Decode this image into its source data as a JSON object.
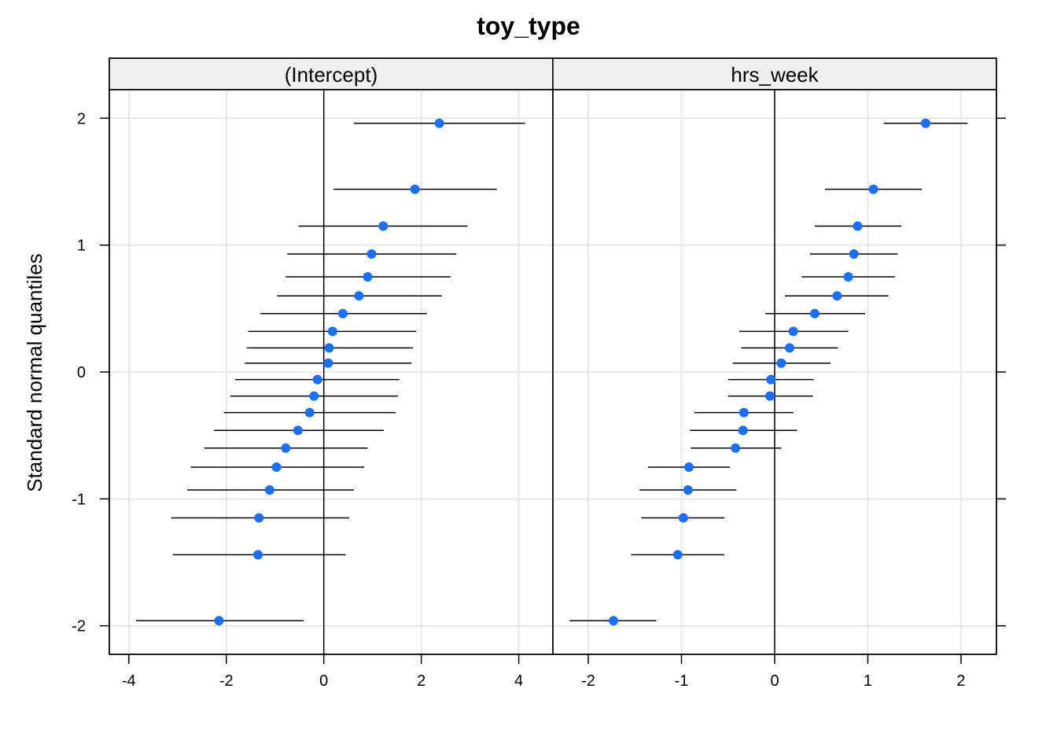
{
  "chart_data": {
    "type": "scatter",
    "title": "toy_type",
    "ylabel": "Standard normal quantiles",
    "xlabel": "",
    "point_color": "#1a6fff",
    "grid": true,
    "y_ticks": [
      "2",
      "1",
      "0",
      "-1",
      "-2"
    ],
    "y_tick_values": [
      2,
      1,
      0,
      -1,
      -2
    ],
    "panels": [
      {
        "name": "(Intercept)",
        "xlim": [
          -4.4,
          4.7
        ],
        "x_ticks": [
          "-4",
          "-2",
          "0",
          "2",
          "4"
        ],
        "x_tick_values": [
          -4,
          -2,
          0,
          2,
          4
        ],
        "points": [
          {
            "x": 2.37,
            "y": 1.96,
            "lo": 0.62,
            "hi": 4.13
          },
          {
            "x": 1.87,
            "y": 1.44,
            "lo": 0.2,
            "hi": 3.55
          },
          {
            "x": 1.22,
            "y": 1.15,
            "lo": -0.52,
            "hi": 2.95
          },
          {
            "x": 0.98,
            "y": 0.93,
            "lo": -0.75,
            "hi": 2.72
          },
          {
            "x": 0.9,
            "y": 0.75,
            "lo": -0.78,
            "hi": 2.6
          },
          {
            "x": 0.72,
            "y": 0.6,
            "lo": -0.96,
            "hi": 2.42
          },
          {
            "x": 0.39,
            "y": 0.46,
            "lo": -1.3,
            "hi": 2.12
          },
          {
            "x": 0.18,
            "y": 0.32,
            "lo": -1.55,
            "hi": 1.9
          },
          {
            "x": 0.11,
            "y": 0.19,
            "lo": -1.58,
            "hi": 1.83
          },
          {
            "x": 0.09,
            "y": 0.07,
            "lo": -1.62,
            "hi": 1.8
          },
          {
            "x": -0.13,
            "y": -0.06,
            "lo": -1.82,
            "hi": 1.55
          },
          {
            "x": -0.2,
            "y": -0.19,
            "lo": -1.92,
            "hi": 1.52
          },
          {
            "x": -0.29,
            "y": -0.32,
            "lo": -2.05,
            "hi": 1.48
          },
          {
            "x": -0.53,
            "y": -0.46,
            "lo": -2.25,
            "hi": 1.23
          },
          {
            "x": -0.78,
            "y": -0.6,
            "lo": -2.45,
            "hi": 0.9
          },
          {
            "x": -0.97,
            "y": -0.75,
            "lo": -2.73,
            "hi": 0.83
          },
          {
            "x": -1.11,
            "y": -0.93,
            "lo": -2.8,
            "hi": 0.62
          },
          {
            "x": -1.33,
            "y": -1.15,
            "lo": -3.13,
            "hi": 0.52
          },
          {
            "x": -1.35,
            "y": -1.44,
            "lo": -3.1,
            "hi": 0.45
          },
          {
            "x": -2.15,
            "y": -1.96,
            "lo": -3.85,
            "hi": -0.41
          }
        ]
      },
      {
        "name": "hrs_week",
        "xlim": [
          -2.38,
          2.38
        ],
        "x_ticks": [
          "-2",
          "-1",
          "0",
          "1",
          "2"
        ],
        "x_tick_values": [
          -2,
          -1,
          0,
          1,
          2
        ],
        "points": [
          {
            "x": 1.62,
            "y": 1.96,
            "lo": 1.17,
            "hi": 2.07
          },
          {
            "x": 1.06,
            "y": 1.44,
            "lo": 0.54,
            "hi": 1.58
          },
          {
            "x": 0.89,
            "y": 1.15,
            "lo": 0.43,
            "hi": 1.36
          },
          {
            "x": 0.85,
            "y": 0.93,
            "lo": 0.38,
            "hi": 1.32
          },
          {
            "x": 0.79,
            "y": 0.75,
            "lo": 0.29,
            "hi": 1.29
          },
          {
            "x": 0.67,
            "y": 0.6,
            "lo": 0.11,
            "hi": 1.22
          },
          {
            "x": 0.43,
            "y": 0.46,
            "lo": -0.1,
            "hi": 0.97
          },
          {
            "x": 0.2,
            "y": 0.32,
            "lo": -0.38,
            "hi": 0.79
          },
          {
            "x": 0.16,
            "y": 0.19,
            "lo": -0.36,
            "hi": 0.68
          },
          {
            "x": 0.07,
            "y": 0.07,
            "lo": -0.45,
            "hi": 0.6
          },
          {
            "x": -0.04,
            "y": -0.06,
            "lo": -0.5,
            "hi": 0.42
          },
          {
            "x": -0.05,
            "y": -0.19,
            "lo": -0.5,
            "hi": 0.41
          },
          {
            "x": -0.33,
            "y": -0.32,
            "lo": -0.86,
            "hi": 0.2
          },
          {
            "x": -0.34,
            "y": -0.46,
            "lo": -0.91,
            "hi": 0.24
          },
          {
            "x": -0.42,
            "y": -0.6,
            "lo": -0.9,
            "hi": 0.07
          },
          {
            "x": -0.92,
            "y": -0.75,
            "lo": -1.36,
            "hi": -0.48
          },
          {
            "x": -0.93,
            "y": -0.93,
            "lo": -1.45,
            "hi": -0.41
          },
          {
            "x": -0.98,
            "y": -1.15,
            "lo": -1.43,
            "hi": -0.54
          },
          {
            "x": -1.04,
            "y": -1.44,
            "lo": -1.54,
            "hi": -0.54
          },
          {
            "x": -1.73,
            "y": -1.96,
            "lo": -2.2,
            "hi": -1.27
          }
        ]
      }
    ]
  }
}
